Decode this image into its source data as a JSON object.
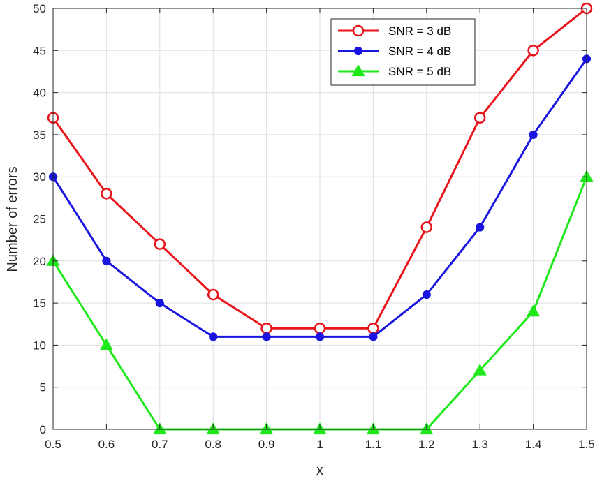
{
  "chart_data": {
    "type": "line",
    "title": "",
    "xlabel": "x",
    "ylabel": "Number of errors",
    "xlim": [
      0.5,
      1.5
    ],
    "ylim": [
      0,
      50
    ],
    "xticks": [
      "0.5",
      "0.6",
      "0.7",
      "0.8",
      "0.9",
      "1",
      "1.1",
      "1.2",
      "1.3",
      "1.4",
      "1.5"
    ],
    "yticks": [
      "0",
      "5",
      "10",
      "15",
      "20",
      "25",
      "30",
      "35",
      "40",
      "45",
      "50"
    ],
    "x": [
      0.5,
      0.6,
      0.7,
      0.8,
      0.9,
      1.0,
      1.1,
      1.2,
      1.3,
      1.4,
      1.5
    ],
    "grid": true,
    "legend_position": "top-right",
    "series": [
      {
        "name": "SNR = 3 dB",
        "color": "#e8121a",
        "marker": "circle-open",
        "values": [
          37,
          28,
          22,
          16,
          12,
          12,
          12,
          24,
          37,
          45,
          50
        ]
      },
      {
        "name": "SNR = 4 dB",
        "color": "#1a14e0",
        "marker": "circle-filled",
        "values": [
          30,
          20,
          15,
          11,
          11,
          11,
          11,
          16,
          24,
          35,
          44
        ]
      },
      {
        "name": "SNR = 5 dB",
        "color": "#1ee81a",
        "marker": "triangle",
        "values": [
          20,
          10,
          0,
          0,
          0,
          0,
          0,
          0,
          7,
          14,
          30
        ]
      }
    ]
  }
}
